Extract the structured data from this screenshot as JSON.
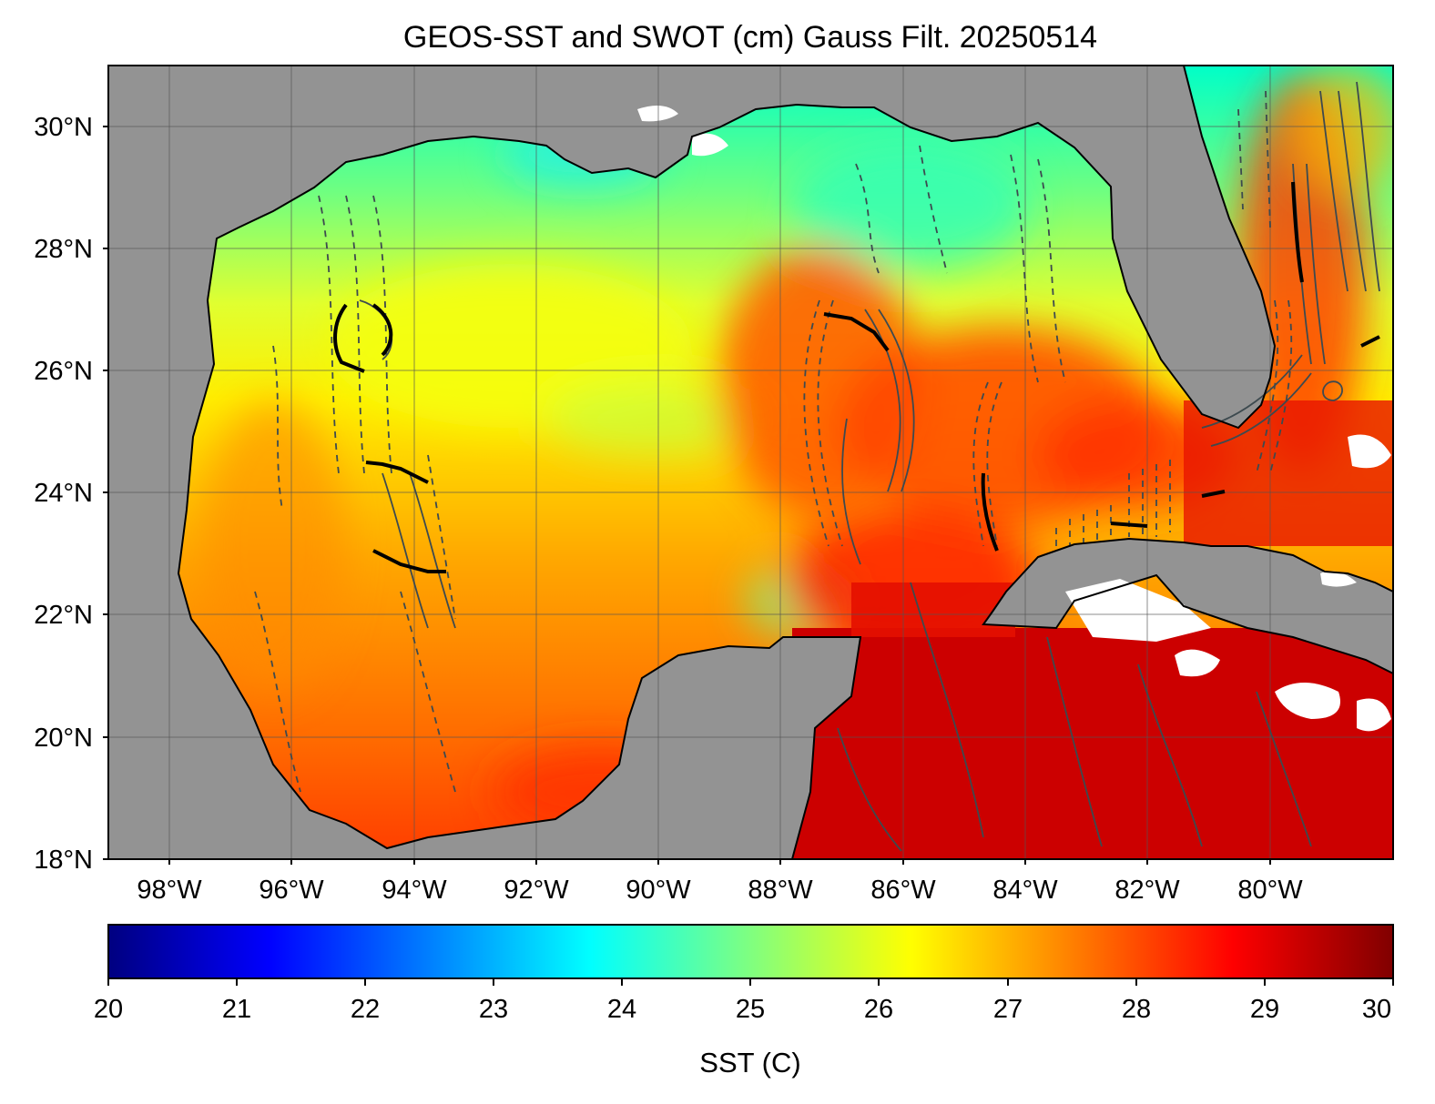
{
  "title": "GEOS-SST  and SWOT (cm) Gauss Filt. 20250514",
  "map": {
    "lon_range": [
      -99,
      -78
    ],
    "lat_range": [
      18,
      31
    ],
    "lat_ticks": [
      {
        "value": 30,
        "label": "30°N"
      },
      {
        "value": 28,
        "label": "28°N"
      },
      {
        "value": 26,
        "label": "26°N"
      },
      {
        "value": 24,
        "label": "24°N"
      },
      {
        "value": 22,
        "label": "22°N"
      },
      {
        "value": 20,
        "label": "20°N"
      },
      {
        "value": 18,
        "label": "18°N"
      }
    ],
    "lon_ticks": [
      {
        "value": -98,
        "label": "98°W"
      },
      {
        "value": -96,
        "label": "96°W"
      },
      {
        "value": -94,
        "label": "94°W"
      },
      {
        "value": -92,
        "label": "92°W"
      },
      {
        "value": -90,
        "label": "90°W"
      },
      {
        "value": -88,
        "label": "88°W"
      },
      {
        "value": -86,
        "label": "86°W"
      },
      {
        "value": -84,
        "label": "84°W"
      },
      {
        "value": -82,
        "label": "82°W"
      },
      {
        "value": -80,
        "label": "80°W"
      }
    ],
    "grid": true,
    "colors": {
      "land": "#939393",
      "no_data": "#ffffff",
      "coast": "#000000",
      "contour": "#3d4a4f",
      "grid": "#666666"
    }
  },
  "colorbar": {
    "label": "SST (C)",
    "range": [
      20,
      30
    ],
    "colormap": "jet",
    "ticks": [
      "20",
      "21",
      "22",
      "23",
      "24",
      "25",
      "26",
      "27",
      "28",
      "29",
      "30"
    ]
  }
}
